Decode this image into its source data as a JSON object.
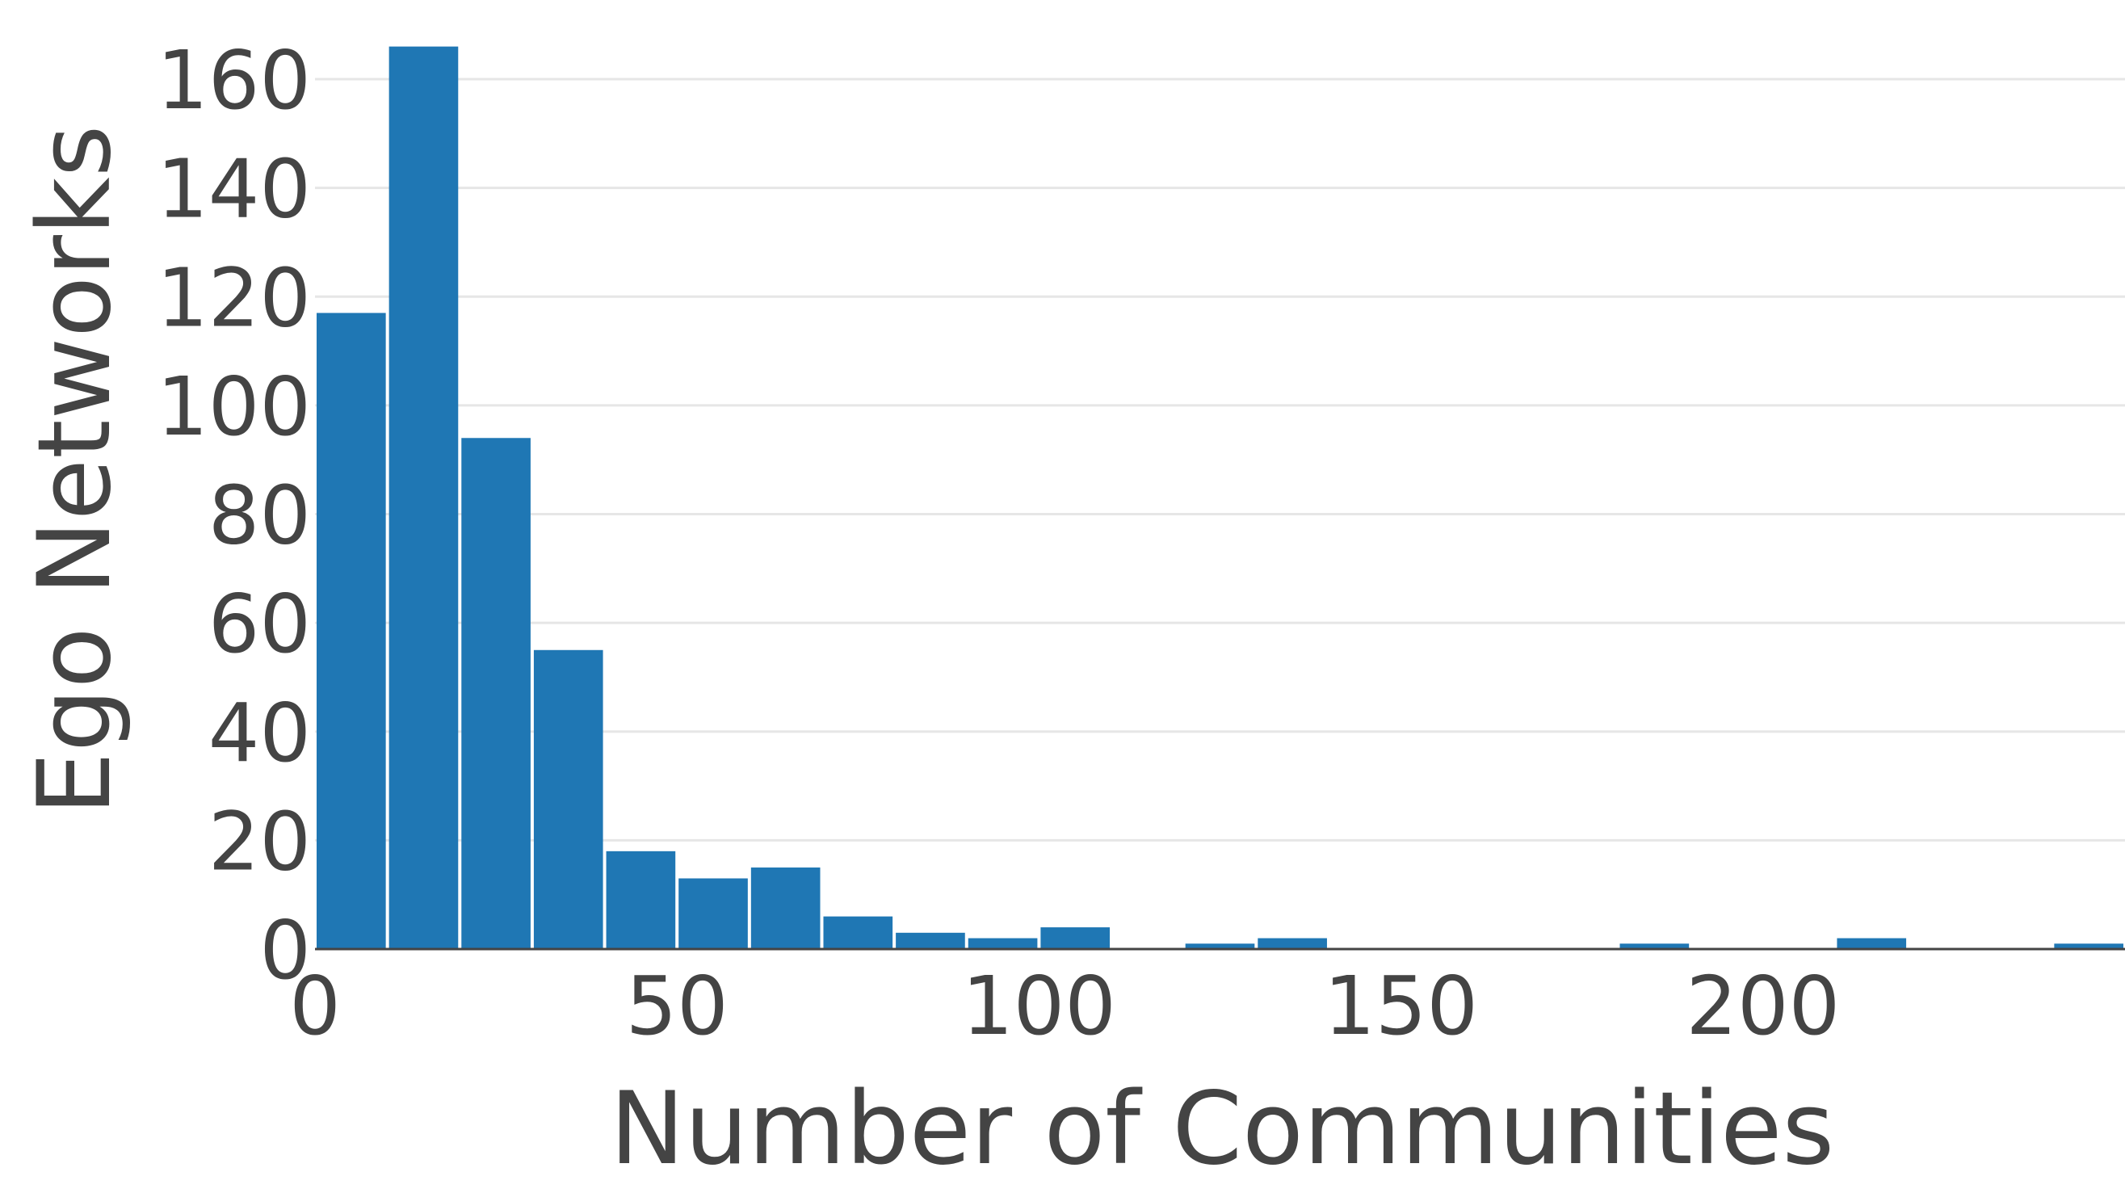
{
  "chart_data": {
    "type": "bar",
    "title": "",
    "xlabel": "Number of Communities",
    "ylabel": "Ego Networks",
    "xlim": [
      0,
      250
    ],
    "ylim": [
      0,
      166
    ],
    "xticks": [
      0,
      50,
      100,
      150,
      200
    ],
    "yticks": [
      0,
      20,
      40,
      60,
      80,
      100,
      120,
      140,
      160
    ],
    "grid": "horizontal",
    "bin_width": 10,
    "bar_color": "#1f77b4",
    "bins": [
      {
        "x0": 0,
        "x1": 10,
        "value": 117
      },
      {
        "x0": 10,
        "x1": 20,
        "value": 166
      },
      {
        "x0": 20,
        "x1": 30,
        "value": 94
      },
      {
        "x0": 30,
        "x1": 40,
        "value": 55
      },
      {
        "x0": 40,
        "x1": 50,
        "value": 18
      },
      {
        "x0": 50,
        "x1": 60,
        "value": 13
      },
      {
        "x0": 60,
        "x1": 70,
        "value": 15
      },
      {
        "x0": 70,
        "x1": 80,
        "value": 6
      },
      {
        "x0": 80,
        "x1": 90,
        "value": 3
      },
      {
        "x0": 90,
        "x1": 100,
        "value": 2
      },
      {
        "x0": 100,
        "x1": 110,
        "value": 4
      },
      {
        "x0": 110,
        "x1": 120,
        "value": 0
      },
      {
        "x0": 120,
        "x1": 130,
        "value": 1
      },
      {
        "x0": 130,
        "x1": 140,
        "value": 2
      },
      {
        "x0": 140,
        "x1": 150,
        "value": 0
      },
      {
        "x0": 150,
        "x1": 160,
        "value": 0
      },
      {
        "x0": 160,
        "x1": 170,
        "value": 0
      },
      {
        "x0": 170,
        "x1": 180,
        "value": 0
      },
      {
        "x0": 180,
        "x1": 190,
        "value": 1
      },
      {
        "x0": 190,
        "x1": 200,
        "value": 0
      },
      {
        "x0": 200,
        "x1": 210,
        "value": 0
      },
      {
        "x0": 210,
        "x1": 220,
        "value": 2
      },
      {
        "x0": 220,
        "x1": 230,
        "value": 0
      },
      {
        "x0": 230,
        "x1": 240,
        "value": 0
      },
      {
        "x0": 240,
        "x1": 250,
        "value": 1
      }
    ]
  }
}
